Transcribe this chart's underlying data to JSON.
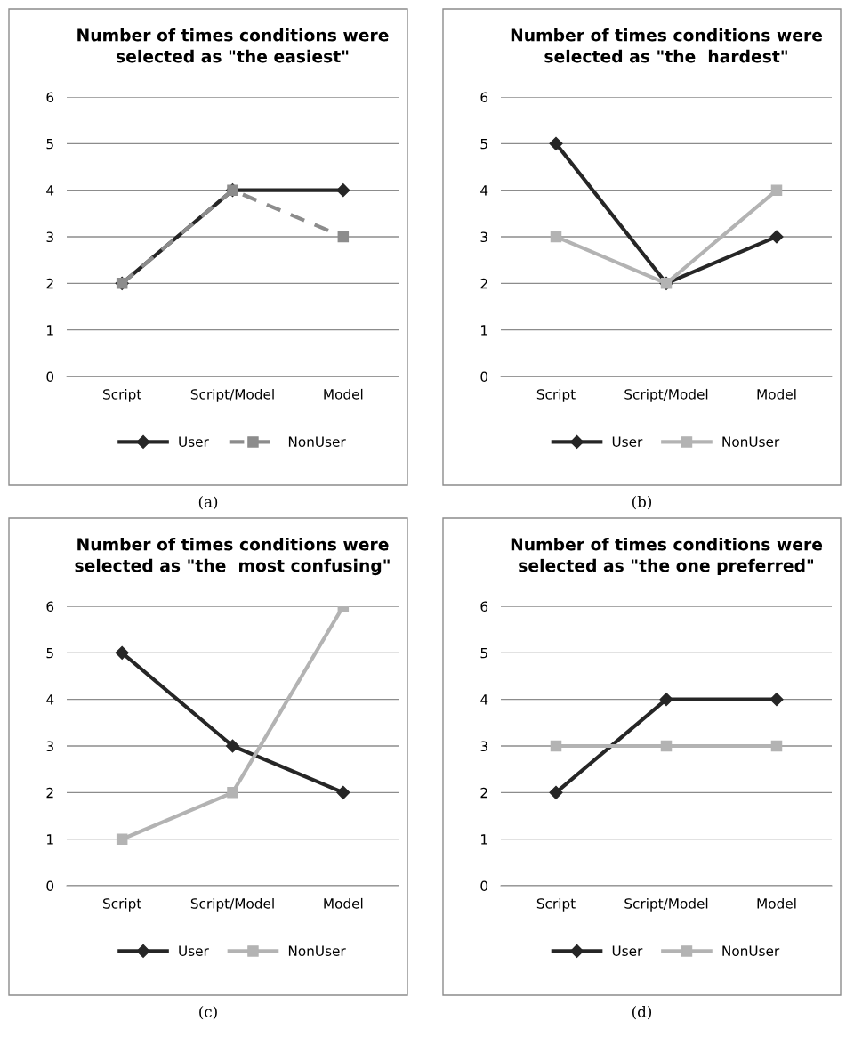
{
  "chart_data": [
    {
      "type": "line",
      "title": "Number of times conditions were\nselected as \"the easiest\"",
      "categories": [
        "Script",
        "Script/Model",
        "Model"
      ],
      "series": [
        {
          "name": "User",
          "color": "#262626",
          "values": [
            2,
            4,
            4
          ],
          "marker": "diamond",
          "line_style": "solid"
        },
        {
          "name": "NonUser",
          "color": "#8c8c8c",
          "values": [
            2,
            4,
            3
          ],
          "marker": "square",
          "line_style": "dashed"
        }
      ],
      "ylim": [
        0,
        6
      ],
      "yticks": [
        0,
        1,
        2,
        3,
        4,
        5,
        6
      ],
      "grid": "y",
      "legend": "bottom",
      "annotations": [
        "(a)"
      ]
    },
    {
      "type": "line",
      "title": "Number of times conditions were\nselected as \"the  hardest\"",
      "categories": [
        "Script",
        "Script/Model",
        "Model"
      ],
      "series": [
        {
          "name": "User",
          "color": "#262626",
          "values": [
            5,
            2,
            3
          ],
          "marker": "diamond",
          "line_style": "solid"
        },
        {
          "name": "NonUser",
          "color": "#b3b3b3",
          "values": [
            3,
            2,
            4
          ],
          "marker": "square",
          "line_style": "solid"
        }
      ],
      "ylim": [
        0,
        6
      ],
      "yticks": [
        0,
        1,
        2,
        3,
        4,
        5,
        6
      ],
      "grid": "y",
      "legend": "bottom",
      "annotations": [
        "(b)"
      ]
    },
    {
      "type": "line",
      "title": "Number of times conditions were\nselected as \"the  most confusing\"",
      "categories": [
        "Script",
        "Script/Model",
        "Model"
      ],
      "series": [
        {
          "name": "User",
          "color": "#262626",
          "values": [
            5,
            3,
            2
          ],
          "marker": "diamond",
          "line_style": "solid"
        },
        {
          "name": "NonUser",
          "color": "#b3b3b3",
          "values": [
            1,
            2,
            6
          ],
          "marker": "square",
          "line_style": "solid"
        }
      ],
      "ylim": [
        0,
        6
      ],
      "yticks": [
        0,
        1,
        2,
        3,
        4,
        5,
        6
      ],
      "grid": "y",
      "legend": "bottom",
      "annotations": [
        "(c)"
      ]
    },
    {
      "type": "line",
      "title": "Number of times conditions were\nselected as \"the one preferred\"",
      "categories": [
        "Script",
        "Script/Model",
        "Model"
      ],
      "series": [
        {
          "name": "User",
          "color": "#262626",
          "values": [
            2,
            4,
            4
          ],
          "marker": "diamond",
          "line_style": "solid"
        },
        {
          "name": "NonUser",
          "color": "#b3b3b3",
          "values": [
            3,
            3,
            3
          ],
          "marker": "square",
          "line_style": "solid"
        }
      ],
      "ylim": [
        0,
        6
      ],
      "yticks": [
        0,
        1,
        2,
        3,
        4,
        5,
        6
      ],
      "grid": "y",
      "legend": "bottom",
      "annotations": [
        "(d)"
      ]
    }
  ]
}
